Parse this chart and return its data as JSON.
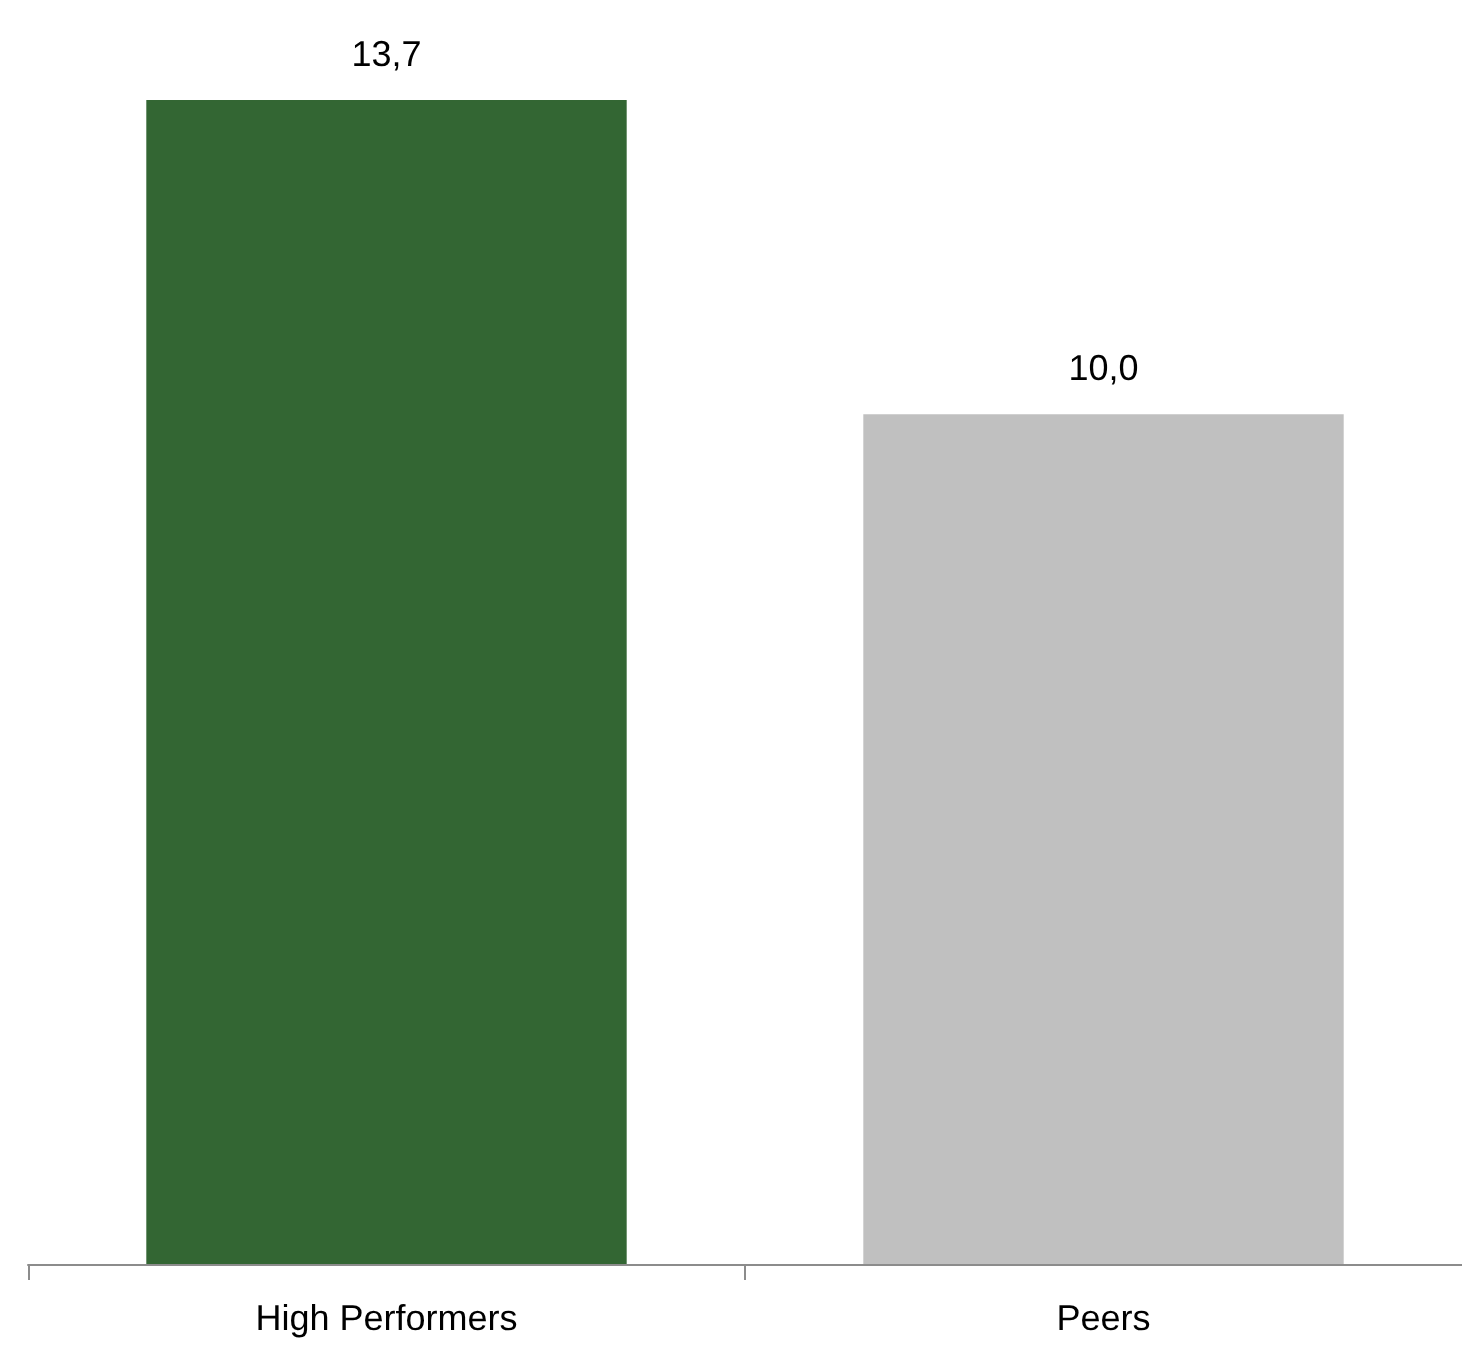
{
  "chart_data": {
    "type": "bar",
    "categories": [
      "High Performers",
      "Peers"
    ],
    "values": [
      13.7,
      10.0
    ],
    "colors": [
      "#336633",
      "#c0c0c0"
    ],
    "value_labels": [
      "13,7",
      "10,0"
    ]
  }
}
